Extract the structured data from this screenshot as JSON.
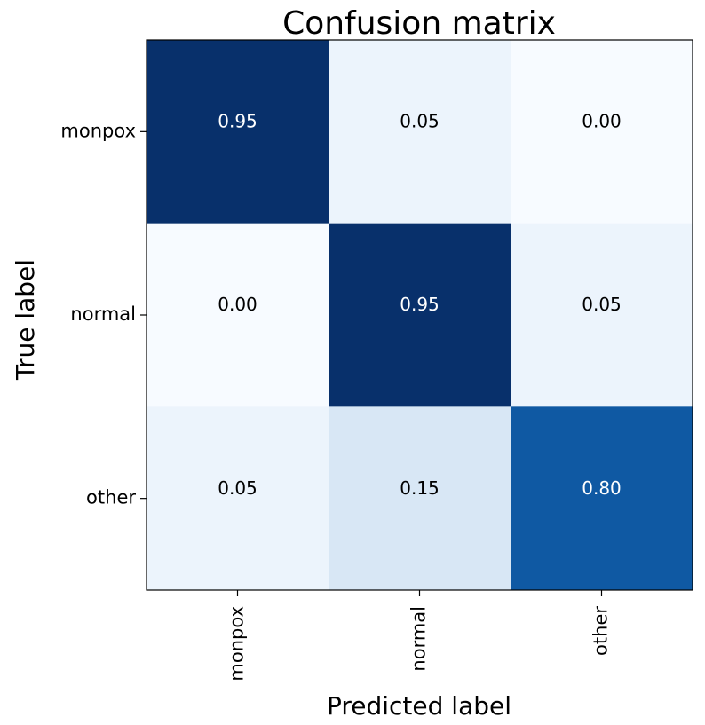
{
  "chart_data": {
    "type": "heatmap",
    "title": "Confusion matrix",
    "x_label": "Predicted label",
    "y_label": "True label",
    "x_categories": [
      "monpox",
      "normal",
      "other"
    ],
    "y_categories": [
      "monpox",
      "normal",
      "other"
    ],
    "values": [
      [
        0.95,
        0.05,
        0
      ],
      [
        0,
        0.95,
        0.05
      ],
      [
        0.05,
        0.15,
        0.8
      ]
    ],
    "value_labels": [
      [
        "0.95",
        "0.05",
        "0.00"
      ],
      [
        "0.00",
        "0.95",
        "0.05"
      ],
      [
        "0.05",
        "0.15",
        "0.80"
      ]
    ],
    "colormap": "Blues"
  }
}
